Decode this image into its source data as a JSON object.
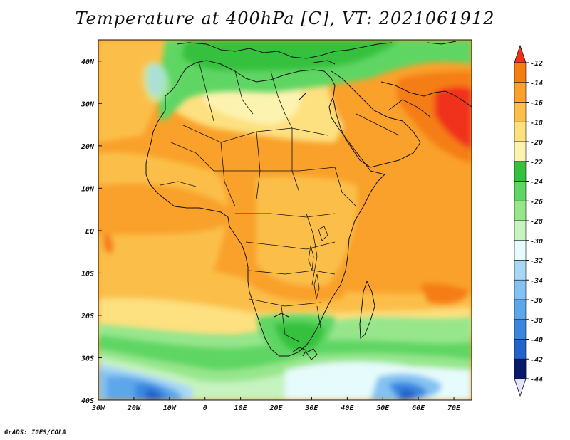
{
  "title": "Temperature at 400hPa [C], VT: 2021061912",
  "footer": "GrADS: IGES/COLA",
  "chart_data": {
    "type": "heatmap",
    "field": "temperature",
    "level": "400hPa",
    "units": "C",
    "valid_time": "2021061912",
    "xlim": [
      -30,
      75
    ],
    "ylim": [
      -40,
      45
    ],
    "x_ticks": [
      "30W",
      "20W",
      "10W",
      "0",
      "10E",
      "20E",
      "30E",
      "40E",
      "50E",
      "60E",
      "70E"
    ],
    "y_ticks": [
      "40N",
      "30N",
      "20N",
      "10N",
      "EQ",
      "10S",
      "20S",
      "30S",
      "40S"
    ],
    "colorbar": {
      "labels": [
        "-12",
        "-14",
        "-16",
        "-18",
        "-20",
        "-22",
        "-24",
        "-26",
        "-28",
        "-30",
        "-32",
        "-34",
        "-36",
        "-38",
        "-40",
        "-42",
        "-44"
      ],
      "colors": [
        "#f0301e",
        "#f57d12",
        "#f9a12a",
        "#fbbf4a",
        "#fde07f",
        "#fdf3b0",
        "#35c13d",
        "#5ed663",
        "#97e68c",
        "#c6f3c0",
        "#e6fbfb",
        "#a9d8f6",
        "#83c2f2",
        "#5ca6ea",
        "#3a86df",
        "#2462cc",
        "#13369b",
        "#0a1a6a"
      ]
    },
    "regions": [
      {
        "name": "north-africa",
        "range": [
          -22,
          -20
        ]
      },
      {
        "name": "mediterranean",
        "range": [
          -26,
          -24
        ]
      },
      {
        "name": "southern-ocean",
        "range": [
          -40,
          -30
        ]
      },
      {
        "name": "arabian-sea-india",
        "range": [
          -16,
          -12
        ]
      },
      {
        "name": "tropical-atlantic",
        "range": [
          -18,
          -16
        ]
      }
    ]
  }
}
